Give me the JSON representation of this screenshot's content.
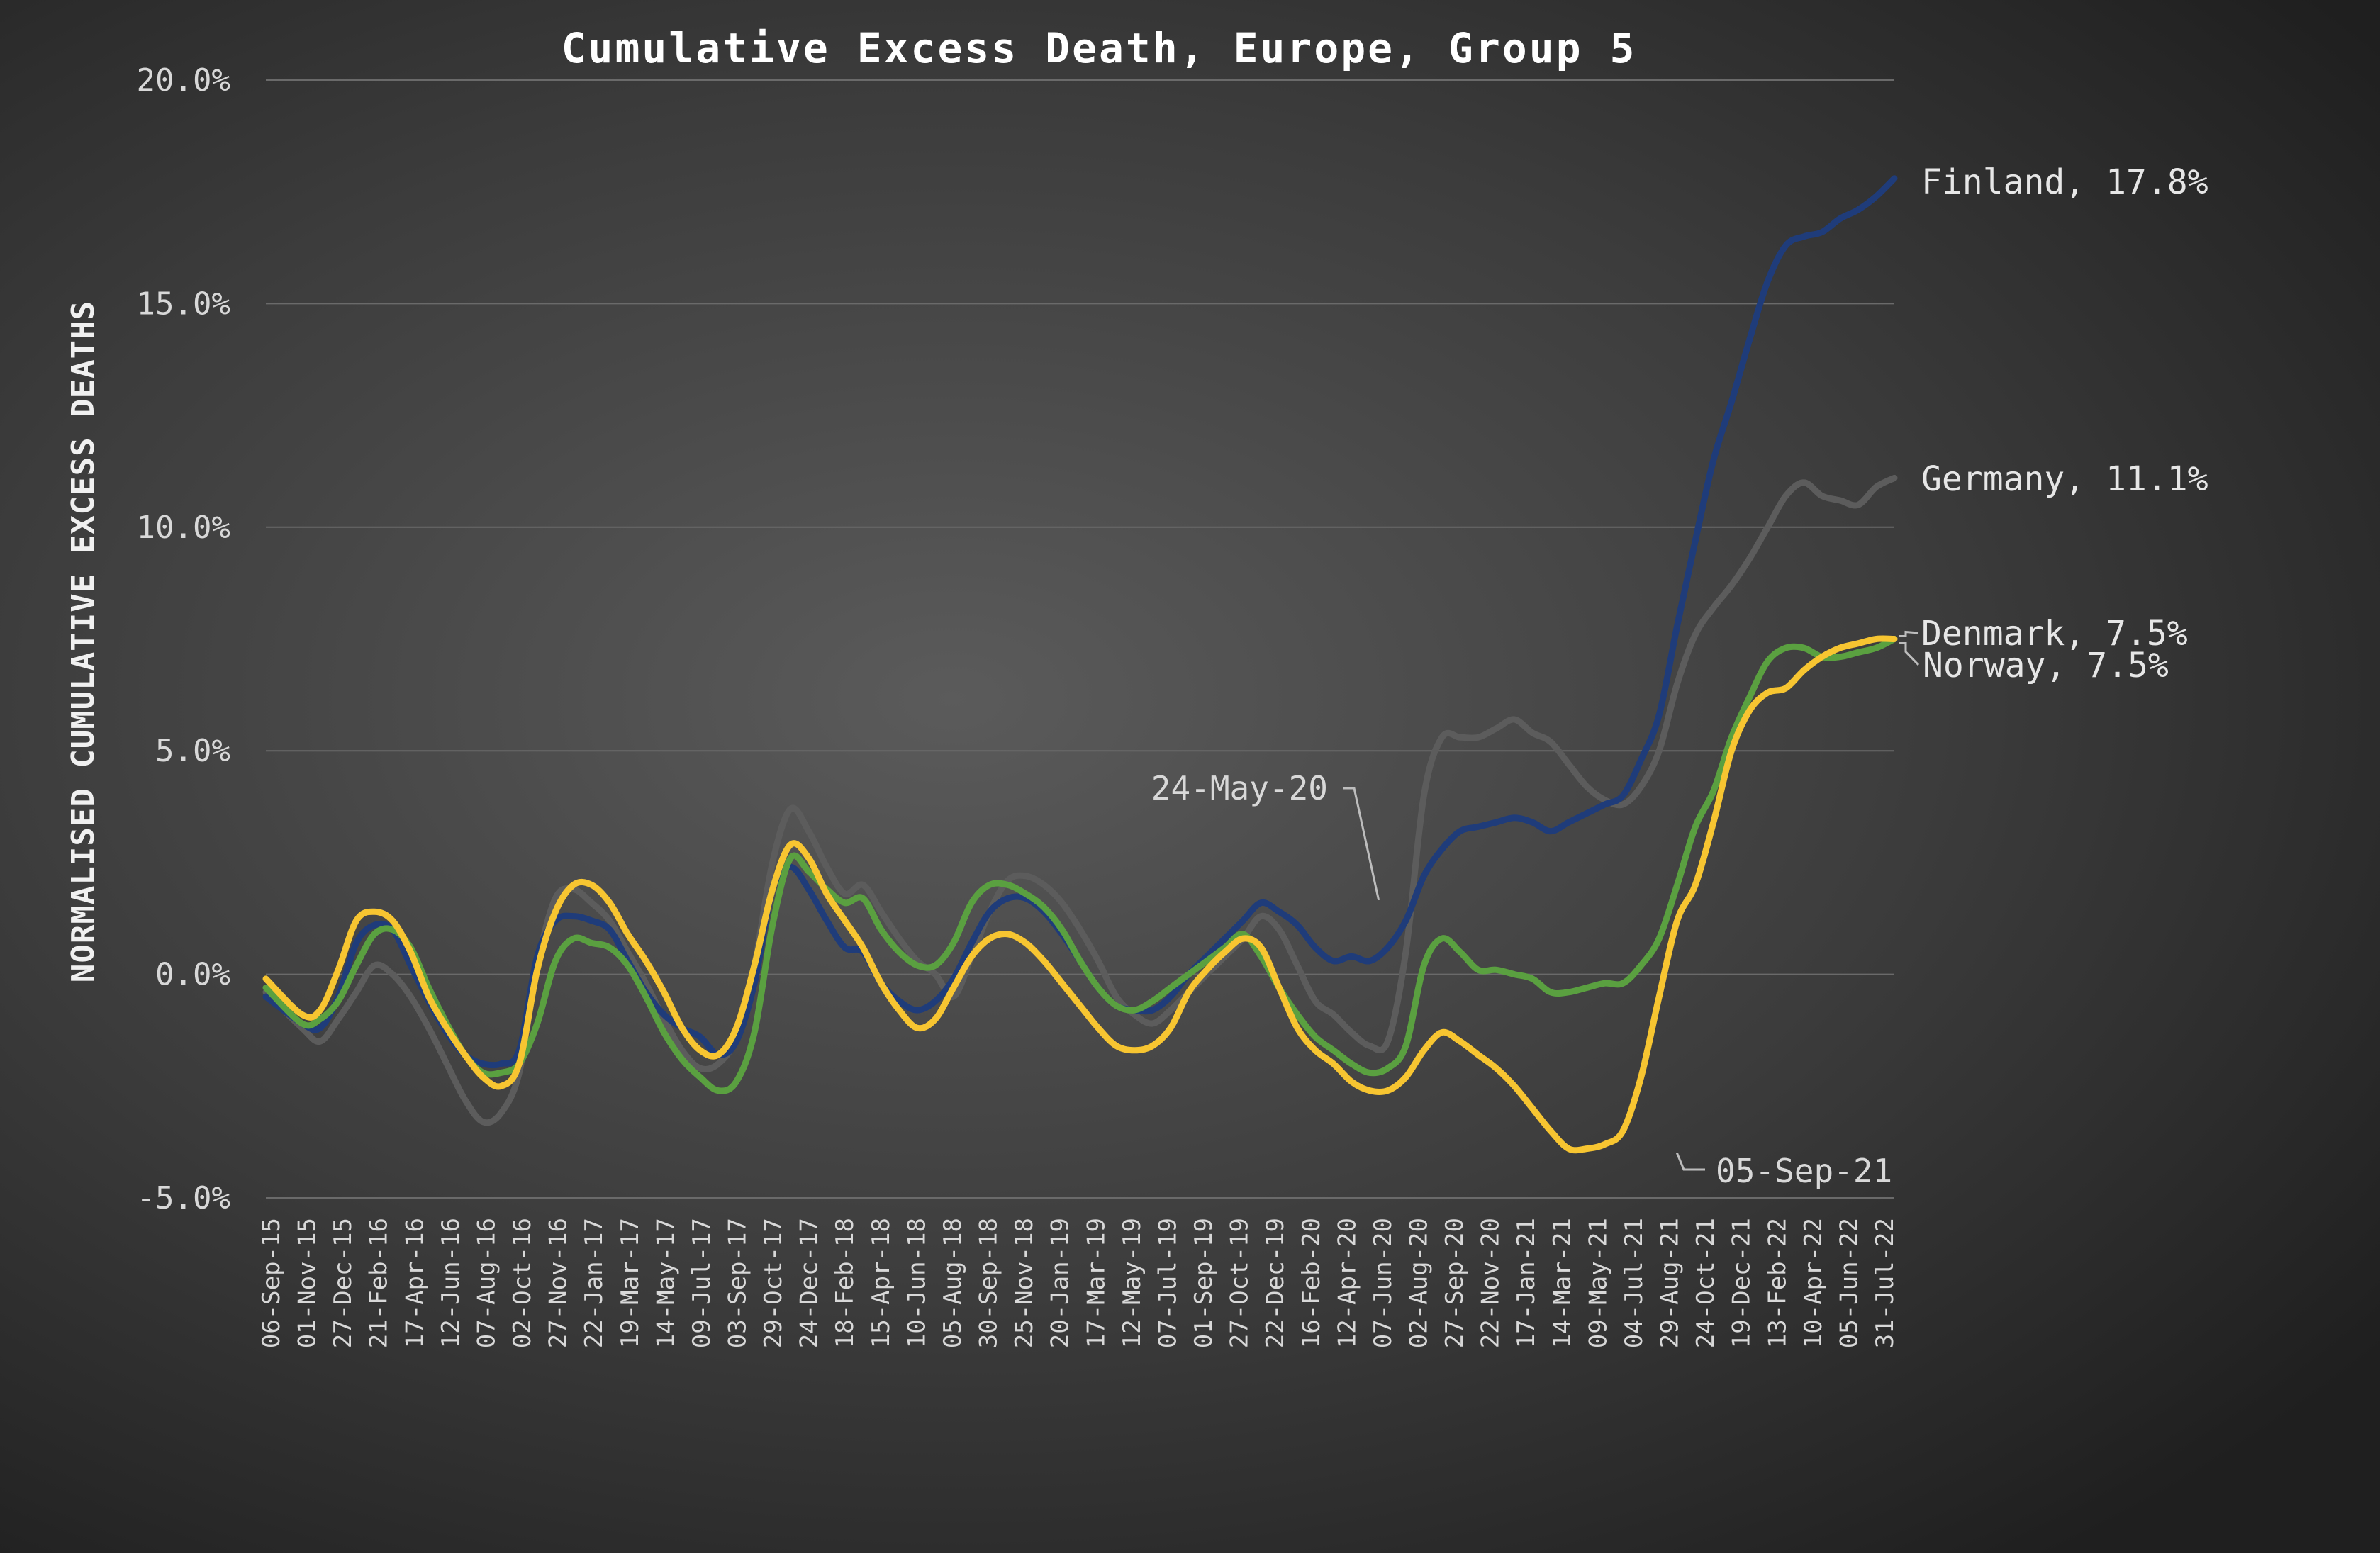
{
  "chart_data": {
    "type": "line",
    "title": "Cumulative Excess Death, Europe, Group 5",
    "ylabel": "NORMALISED CUMULATIVE EXCESS DEATHS",
    "xlabel": "",
    "ylim": [
      -5,
      20
    ],
    "y_ticks": [
      -5,
      0,
      5,
      10,
      15,
      20
    ],
    "y_tick_labels": [
      "-5.0%",
      "0.0%",
      "5.0%",
      "10.0%",
      "15.0%",
      "20.0%"
    ],
    "x_tick_labels": [
      "06-Sep-15",
      "01-Nov-15",
      "27-Dec-15",
      "21-Feb-16",
      "17-Apr-16",
      "12-Jun-16",
      "07-Aug-16",
      "02-Oct-16",
      "27-Nov-16",
      "22-Jan-17",
      "19-Mar-17",
      "14-May-17",
      "09-Jul-17",
      "03-Sep-17",
      "29-Oct-17",
      "24-Dec-17",
      "18-Feb-18",
      "15-Apr-18",
      "10-Jun-18",
      "05-Aug-18",
      "30-Sep-18",
      "25-Nov-18",
      "20-Jan-19",
      "17-Mar-19",
      "12-May-19",
      "07-Jul-19",
      "01-Sep-19",
      "27-Oct-19",
      "22-Dec-19",
      "16-Feb-20",
      "12-Apr-20",
      "07-Jun-20",
      "02-Aug-20",
      "27-Sep-20",
      "22-Nov-20",
      "17-Jan-21",
      "14-Mar-21",
      "09-May-21",
      "04-Jul-21",
      "29-Aug-21",
      "24-Oct-21",
      "19-Dec-21",
      "13-Feb-22",
      "10-Apr-22",
      "05-Jun-22",
      "31-Jul-22"
    ],
    "x_unit": "weeks since 06-Sep-15",
    "x_range": [
      0,
      360
    ],
    "grid": "horizontal",
    "legend": "end-of-line labels",
    "series": [
      {
        "name": "Germany",
        "label": "Germany, 11.1%",
        "color": "#5c5c5c",
        "x": [
          0,
          8,
          12,
          16,
          20,
          24,
          28,
          32,
          36,
          40,
          44,
          48,
          52,
          56,
          60,
          64,
          68,
          72,
          76,
          80,
          84,
          88,
          92,
          96,
          100,
          104,
          108,
          112,
          116,
          120,
          124,
          128,
          132,
          136,
          140,
          144,
          148,
          152,
          156,
          160,
          164,
          168,
          172,
          176,
          180,
          184,
          188,
          192,
          196,
          200,
          204,
          208,
          212,
          216,
          220,
          224,
          228,
          232,
          236,
          240,
          244,
          248,
          252,
          256,
          260,
          264,
          268,
          272,
          276,
          280,
          284,
          288,
          292,
          296,
          300,
          304,
          308,
          312,
          316,
          320,
          324,
          328,
          332,
          336,
          340,
          344,
          348,
          352,
          356,
          360
        ],
        "y": [
          -0.4,
          -1.2,
          -1.5,
          -1.0,
          -0.4,
          0.2,
          0.0,
          -0.5,
          -1.2,
          -2.0,
          -2.8,
          -3.3,
          -3.1,
          -2.2,
          0.2,
          1.7,
          1.9,
          1.6,
          1.2,
          0.5,
          -0.2,
          -1.0,
          -1.7,
          -2.1,
          -2.0,
          -1.4,
          0.2,
          2.5,
          3.7,
          3.2,
          2.4,
          1.8,
          2.0,
          1.4,
          0.8,
          0.3,
          0.0,
          -0.5,
          0.4,
          1.4,
          2.1,
          2.2,
          2.0,
          1.6,
          1.0,
          0.3,
          -0.5,
          -0.9,
          -1.1,
          -0.8,
          -0.4,
          0.0,
          0.4,
          0.8,
          1.3,
          1.0,
          0.2,
          -0.6,
          -0.9,
          -1.3,
          -1.6,
          -1.5,
          0.5,
          4.0,
          5.3,
          5.3,
          5.3,
          5.5,
          5.7,
          5.4,
          5.2,
          4.7,
          4.2,
          3.9,
          3.8,
          4.2,
          5.0,
          6.5,
          7.6,
          8.2,
          8.7,
          9.3,
          10.0,
          10.7,
          11.0,
          10.7,
          10.6,
          10.5,
          10.9,
          11.1
        ]
      },
      {
        "name": "Finland",
        "label": "Finland, 17.8%",
        "color": "#1f3c7a",
        "x": [
          0,
          8,
          12,
          16,
          20,
          24,
          28,
          32,
          36,
          40,
          44,
          48,
          52,
          56,
          60,
          64,
          68,
          72,
          76,
          80,
          84,
          88,
          92,
          96,
          100,
          104,
          108,
          112,
          116,
          120,
          124,
          128,
          132,
          136,
          140,
          144,
          148,
          152,
          156,
          160,
          164,
          168,
          172,
          176,
          180,
          184,
          188,
          192,
          196,
          200,
          204,
          208,
          212,
          216,
          220,
          224,
          228,
          232,
          236,
          240,
          244,
          248,
          252,
          256,
          260,
          264,
          268,
          272,
          276,
          280,
          284,
          288,
          292,
          296,
          300,
          304,
          308,
          312,
          316,
          320,
          324,
          328,
          332,
          336,
          340,
          344,
          348,
          352,
          356,
          360
        ],
        "y": [
          -0.5,
          -1.1,
          -1.2,
          -0.5,
          0.7,
          1.1,
          1.0,
          0.2,
          -0.6,
          -1.3,
          -1.8,
          -2.0,
          -2.0,
          -1.7,
          0.4,
          1.2,
          1.3,
          1.2,
          1.0,
          0.3,
          -0.4,
          -0.9,
          -1.2,
          -1.4,
          -1.8,
          -1.5,
          -0.2,
          1.9,
          2.4,
          1.9,
          1.2,
          0.6,
          0.5,
          -0.2,
          -0.6,
          -0.8,
          -0.6,
          -0.1,
          0.7,
          1.4,
          1.7,
          1.7,
          1.4,
          0.9,
          0.3,
          -0.3,
          -0.7,
          -0.8,
          -0.8,
          -0.5,
          0.0,
          0.4,
          0.8,
          1.2,
          1.6,
          1.4,
          1.1,
          0.6,
          0.3,
          0.4,
          0.3,
          0.6,
          1.2,
          2.2,
          2.8,
          3.2,
          3.3,
          3.4,
          3.5,
          3.4,
          3.2,
          3.4,
          3.6,
          3.8,
          4.0,
          4.8,
          5.8,
          7.8,
          9.7,
          11.5,
          12.8,
          14.2,
          15.5,
          16.3,
          16.5,
          16.6,
          16.9,
          17.1,
          17.4,
          17.8
        ]
      },
      {
        "name": "Norway",
        "label": "Norway, 7.5%",
        "color": "#5aa040",
        "x": [
          0,
          8,
          12,
          16,
          20,
          24,
          28,
          32,
          36,
          40,
          44,
          48,
          52,
          56,
          60,
          64,
          68,
          72,
          76,
          80,
          84,
          88,
          92,
          96,
          100,
          104,
          108,
          112,
          116,
          120,
          124,
          128,
          132,
          136,
          140,
          144,
          148,
          152,
          156,
          160,
          164,
          168,
          172,
          176,
          180,
          184,
          188,
          192,
          196,
          200,
          204,
          208,
          212,
          216,
          220,
          224,
          228,
          232,
          236,
          240,
          244,
          248,
          252,
          256,
          260,
          264,
          268,
          272,
          276,
          280,
          284,
          288,
          292,
          296,
          300,
          304,
          308,
          312,
          316,
          320,
          324,
          328,
          332,
          336,
          340,
          344,
          348,
          352,
          356,
          360
        ],
        "y": [
          -0.3,
          -1.1,
          -1.0,
          -0.6,
          0.2,
          0.9,
          1.0,
          0.6,
          -0.3,
          -1.1,
          -1.8,
          -2.2,
          -2.2,
          -2.0,
          -1.1,
          0.3,
          0.8,
          0.7,
          0.6,
          0.2,
          -0.5,
          -1.3,
          -1.9,
          -2.3,
          -2.6,
          -2.4,
          -1.3,
          1.1,
          2.6,
          2.3,
          1.9,
          1.6,
          1.7,
          1.0,
          0.5,
          0.2,
          0.2,
          0.7,
          1.6,
          2.0,
          2.0,
          1.8,
          1.5,
          1.0,
          0.3,
          -0.3,
          -0.7,
          -0.8,
          -0.6,
          -0.3,
          0.0,
          0.3,
          0.6,
          0.9,
          0.4,
          -0.3,
          -0.9,
          -1.4,
          -1.7,
          -2.0,
          -2.2,
          -2.1,
          -1.6,
          0.2,
          0.8,
          0.5,
          0.1,
          0.1,
          0.0,
          -0.1,
          -0.4,
          -0.4,
          -0.3,
          -0.2,
          -0.2,
          0.2,
          0.8,
          2.0,
          3.3,
          4.1,
          5.3,
          6.2,
          7.0,
          7.3,
          7.3,
          7.1,
          7.1,
          7.2,
          7.3,
          7.5
        ]
      },
      {
        "name": "Denmark",
        "label": "Denmark, 7.5%",
        "color": "#f7c531",
        "x": [
          0,
          8,
          12,
          16,
          20,
          24,
          28,
          32,
          36,
          40,
          44,
          48,
          52,
          56,
          60,
          64,
          68,
          72,
          76,
          80,
          84,
          88,
          92,
          96,
          100,
          104,
          108,
          112,
          116,
          120,
          124,
          128,
          132,
          136,
          140,
          144,
          148,
          152,
          156,
          160,
          164,
          168,
          172,
          176,
          180,
          184,
          188,
          192,
          196,
          200,
          204,
          208,
          212,
          216,
          220,
          224,
          228,
          232,
          236,
          240,
          244,
          248,
          252,
          256,
          260,
          264,
          268,
          272,
          276,
          280,
          284,
          288,
          292,
          296,
          300,
          304,
          308,
          312,
          316,
          320,
          324,
          328,
          332,
          336,
          340,
          344,
          348,
          352,
          356,
          360
        ],
        "y": [
          -0.1,
          -0.9,
          -0.8,
          0.1,
          1.2,
          1.4,
          1.2,
          0.5,
          -0.5,
          -1.2,
          -1.8,
          -2.3,
          -2.5,
          -2.0,
          0.1,
          1.4,
          2.0,
          2.0,
          1.6,
          0.9,
          0.3,
          -0.4,
          -1.2,
          -1.7,
          -1.8,
          -1.2,
          0.2,
          1.9,
          2.9,
          2.6,
          1.8,
          1.2,
          0.6,
          -0.2,
          -0.8,
          -1.2,
          -1.0,
          -0.3,
          0.4,
          0.8,
          0.9,
          0.7,
          0.3,
          -0.2,
          -0.7,
          -1.2,
          -1.6,
          -1.7,
          -1.6,
          -1.2,
          -0.4,
          0.1,
          0.5,
          0.8,
          0.6,
          -0.3,
          -1.2,
          -1.7,
          -2.0,
          -2.4,
          -2.6,
          -2.6,
          -2.3,
          -1.7,
          -1.3,
          -1.5,
          -1.8,
          -2.1,
          -2.5,
          -3.0,
          -3.5,
          -3.9,
          -3.9,
          -3.8,
          -3.5,
          -2.3,
          -0.5,
          1.2,
          2.0,
          3.4,
          5.0,
          5.9,
          6.3,
          6.4,
          6.8,
          7.1,
          7.3,
          7.4,
          7.5,
          7.5
        ]
      }
    ],
    "annotations": [
      {
        "text": "24-May-20",
        "x": 246,
        "y": 1.5
      },
      {
        "text": "05-Sep-21",
        "x": 311,
        "y": -3.9
      }
    ]
  }
}
